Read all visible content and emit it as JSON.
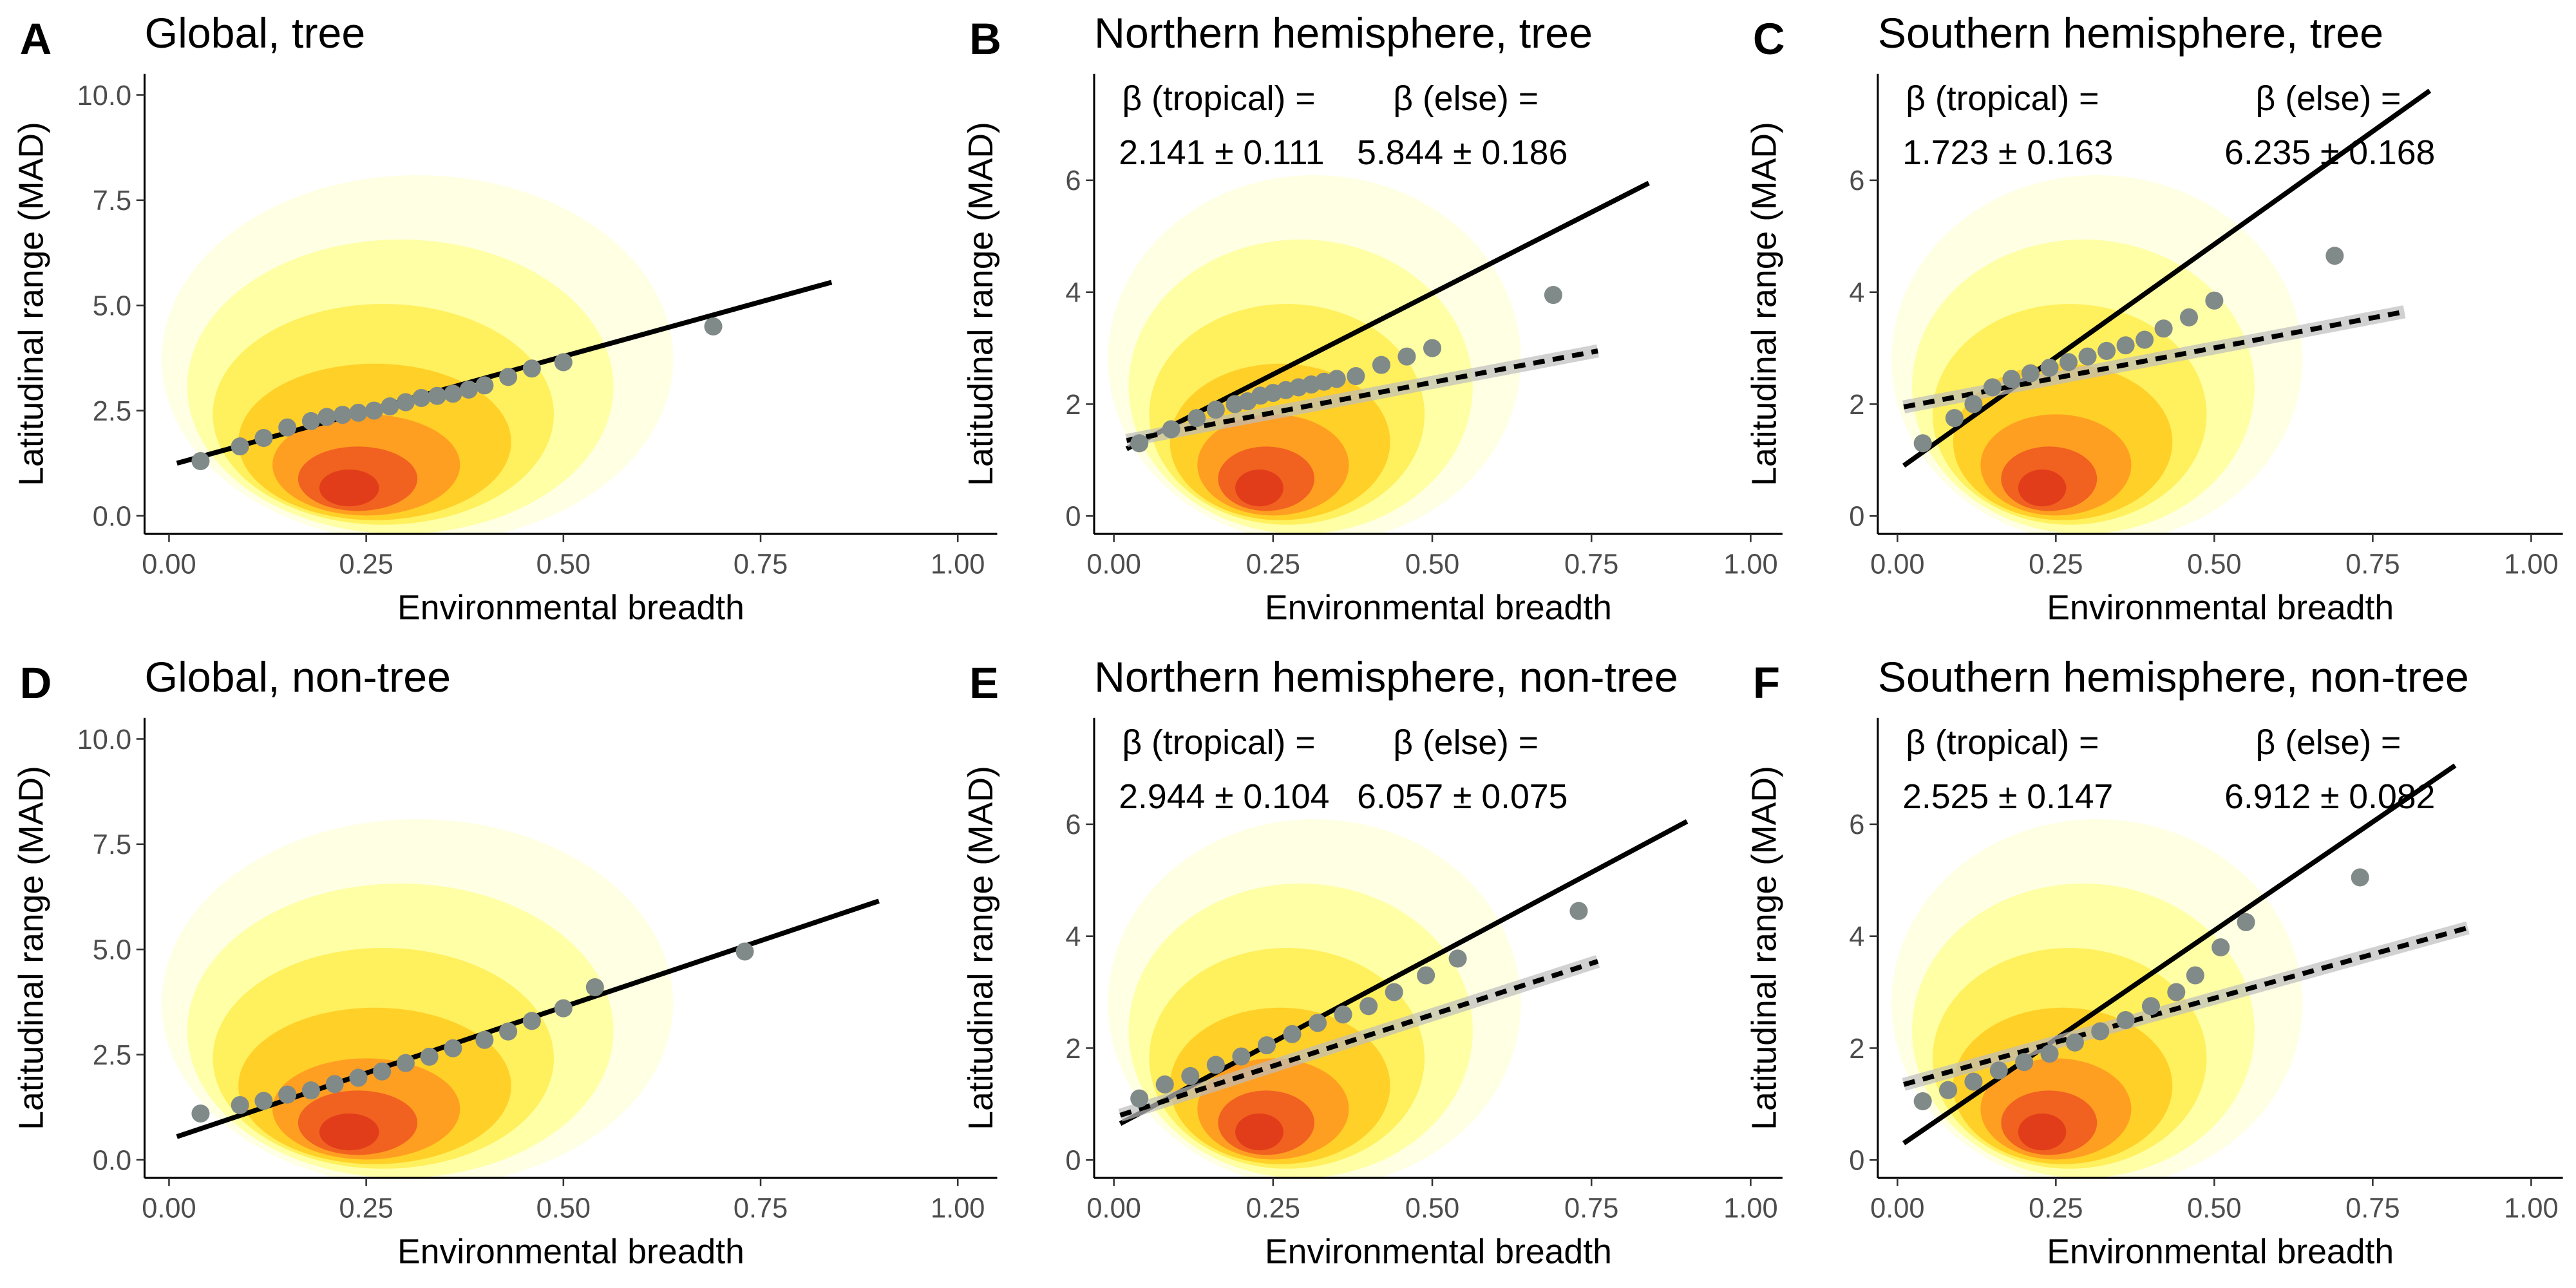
{
  "chart_data": [
    {
      "type": "scatter",
      "panel": "A",
      "title": "Global, tree",
      "x_label": "Environmental breadth",
      "y_label": "Latitudinal range (MAD)",
      "xlim": [
        -0.031,
        1.05
      ],
      "ylim": [
        -0.43,
        10.5
      ],
      "xticks": [
        {
          "value": 0,
          "label": "0.00"
        },
        0.25,
        {
          "value": 0.5,
          "label": "0.50"
        },
        0.75,
        {
          "value": 1,
          "label": "1.00"
        }
      ],
      "yticks": [
        {
          "value": 0,
          "label": "0.0"
        },
        2.5,
        {
          "value": 5,
          "label": "5.0"
        },
        7.5,
        {
          "value": 10,
          "label": "10.0"
        }
      ],
      "point_color": "#808a88",
      "line_color": "#000000",
      "x": [
        0.04,
        0.09,
        0.12,
        0.15,
        0.18,
        0.2,
        0.22,
        0.24,
        0.26,
        0.28,
        0.3,
        0.32,
        0.34,
        0.36,
        0.38,
        0.4,
        0.43,
        0.46,
        0.5,
        0.69
      ],
      "values": [
        1.3,
        1.65,
        1.85,
        2.1,
        2.25,
        2.35,
        2.4,
        2.45,
        2.5,
        2.6,
        2.7,
        2.8,
        2.85,
        2.9,
        3.0,
        3.1,
        3.3,
        3.5,
        3.65,
        4.5
      ],
      "lines": [
        {
          "style": "solid",
          "x": [
            0.01,
            0.84
          ],
          "values": [
            1.25,
            5.55
          ]
        }
      ]
    },
    {
      "type": "scatter",
      "panel": "B",
      "title": "Northern hemisphere, tree",
      "x_label": "Environmental breadth",
      "y_label": "Latitudinal range (MAD)",
      "xlim": [
        -0.031,
        1.05
      ],
      "ylim": [
        -0.32,
        7.9
      ],
      "xticks": [
        {
          "value": 0,
          "label": "0.00"
        },
        0.25,
        {
          "value": 0.5,
          "label": "0.50"
        },
        0.75,
        {
          "value": 1,
          "label": "1.00"
        }
      ],
      "yticks": [
        0,
        2,
        4,
        6
      ],
      "point_color": "#808a88",
      "line_color": "#000000",
      "annotations": [
        "β (tropical) =",
        "2.141 ± 0.111",
        "β (else) =",
        "5.844 ± 0.186"
      ],
      "x": [
        0.04,
        0.09,
        0.13,
        0.16,
        0.19,
        0.21,
        0.23,
        0.25,
        0.27,
        0.29,
        0.31,
        0.33,
        0.35,
        0.38,
        0.42,
        0.46,
        0.5,
        0.69
      ],
      "values": [
        1.3,
        1.55,
        1.75,
        1.9,
        2.0,
        2.05,
        2.15,
        2.2,
        2.25,
        2.3,
        2.35,
        2.4,
        2.45,
        2.5,
        2.7,
        2.85,
        3.0,
        3.95
      ],
      "lines": [
        {
          "style": "solid",
          "x": [
            0.02,
            0.84
          ],
          "values": [
            1.2,
            5.95
          ]
        },
        {
          "style": "dashed",
          "x": [
            0.02,
            0.76
          ],
          "values": [
            1.35,
            2.95
          ]
        }
      ]
    },
    {
      "type": "scatter",
      "panel": "C",
      "title": "Southern hemisphere, tree",
      "x_label": "Environmental breadth",
      "y_label": "Latitudinal range (MAD)",
      "xlim": [
        -0.031,
        1.05
      ],
      "ylim": [
        -0.32,
        7.9
      ],
      "xticks": [
        {
          "value": 0,
          "label": "0.00"
        },
        0.25,
        {
          "value": 0.5,
          "label": "0.50"
        },
        0.75,
        {
          "value": 1,
          "label": "1.00"
        }
      ],
      "yticks": [
        0,
        2,
        4,
        6
      ],
      "point_color": "#808a88",
      "line_color": "#000000",
      "annotations": [
        "β (tropical) =",
        "1.723 ± 0.163",
        "β (else) =",
        "6.235 ± 0.168"
      ],
      "x": [
        0.04,
        0.09,
        0.12,
        0.15,
        0.18,
        0.21,
        0.24,
        0.27,
        0.3,
        0.33,
        0.36,
        0.39,
        0.42,
        0.46,
        0.5,
        0.69
      ],
      "values": [
        1.3,
        1.75,
        2.0,
        2.3,
        2.45,
        2.55,
        2.65,
        2.75,
        2.85,
        2.95,
        3.05,
        3.15,
        3.35,
        3.55,
        3.85,
        4.65
      ],
      "lines": [
        {
          "style": "solid",
          "x": [
            0.01,
            0.84
          ],
          "values": [
            0.9,
            7.6
          ]
        },
        {
          "style": "dashed",
          "x": [
            0.01,
            0.8
          ],
          "values": [
            1.95,
            3.65
          ]
        }
      ]
    },
    {
      "type": "scatter",
      "panel": "D",
      "title": "Global, non-tree",
      "x_label": "Environmental breadth",
      "y_label": "Latitudinal range (MAD)",
      "xlim": [
        -0.031,
        1.05
      ],
      "ylim": [
        -0.43,
        10.5
      ],
      "xticks": [
        {
          "value": 0,
          "label": "0.00"
        },
        0.25,
        {
          "value": 0.5,
          "label": "0.50"
        },
        0.75,
        {
          "value": 1,
          "label": "1.00"
        }
      ],
      "yticks": [
        {
          "value": 0,
          "label": "0.0"
        },
        2.5,
        {
          "value": 5,
          "label": "5.0"
        },
        7.5,
        {
          "value": 10,
          "label": "10.0"
        }
      ],
      "point_color": "#808a88",
      "line_color": "#000000",
      "x": [
        0.04,
        0.09,
        0.12,
        0.15,
        0.18,
        0.21,
        0.24,
        0.27,
        0.3,
        0.33,
        0.36,
        0.4,
        0.43,
        0.46,
        0.5,
        0.54,
        0.73
      ],
      "values": [
        1.1,
        1.3,
        1.4,
        1.55,
        1.65,
        1.8,
        1.95,
        2.1,
        2.3,
        2.45,
        2.65,
        2.85,
        3.05,
        3.3,
        3.6,
        4.1,
        4.95
      ],
      "lines": [
        {
          "style": "solid",
          "x": [
            0.01,
            0.9
          ],
          "values": [
            0.55,
            6.15
          ]
        }
      ]
    },
    {
      "type": "scatter",
      "panel": "E",
      "title": "Northern hemisphere, non-tree",
      "x_label": "Environmental breadth",
      "y_label": "Latitudinal range (MAD)",
      "xlim": [
        -0.031,
        1.05
      ],
      "ylim": [
        -0.32,
        7.9
      ],
      "xticks": [
        {
          "value": 0,
          "label": "0.00"
        },
        0.25,
        {
          "value": 0.5,
          "label": "0.50"
        },
        0.75,
        {
          "value": 1,
          "label": "1.00"
        }
      ],
      "yticks": [
        0,
        2,
        4,
        6
      ],
      "point_color": "#808a88",
      "line_color": "#000000",
      "annotations": [
        "β (tropical) =",
        "2.944 ± 0.104",
        "β (else) =",
        "6.057 ± 0.075"
      ],
      "x": [
        0.04,
        0.08,
        0.12,
        0.16,
        0.2,
        0.24,
        0.28,
        0.32,
        0.36,
        0.4,
        0.44,
        0.49,
        0.54,
        0.73
      ],
      "values": [
        1.1,
        1.35,
        1.5,
        1.7,
        1.85,
        2.05,
        2.25,
        2.45,
        2.6,
        2.75,
        3.0,
        3.3,
        3.6,
        4.45
      ],
      "lines": [
        {
          "style": "solid",
          "x": [
            0.01,
            0.9
          ],
          "values": [
            0.65,
            6.05
          ]
        },
        {
          "style": "dashed",
          "x": [
            0.01,
            0.76
          ],
          "values": [
            0.8,
            3.55
          ]
        }
      ]
    },
    {
      "type": "scatter",
      "panel": "F",
      "title": "Southern hemisphere, non-tree",
      "x_label": "Environmental breadth",
      "y_label": "Latitudinal range (MAD)",
      "xlim": [
        -0.031,
        1.05
      ],
      "ylim": [
        -0.32,
        7.9
      ],
      "xticks": [
        {
          "value": 0,
          "label": "0.00"
        },
        0.25,
        {
          "value": 0.5,
          "label": "0.50"
        },
        0.75,
        {
          "value": 1,
          "label": "1.00"
        }
      ],
      "yticks": [
        0,
        2,
        4,
        6
      ],
      "point_color": "#808a88",
      "line_color": "#000000",
      "annotations": [
        "β (tropical) =",
        "2.525 ± 0.147",
        "β (else) =",
        "6.912 ± 0.082"
      ],
      "x": [
        0.04,
        0.08,
        0.12,
        0.16,
        0.2,
        0.24,
        0.28,
        0.32,
        0.36,
        0.4,
        0.44,
        0.47,
        0.51,
        0.55,
        0.73
      ],
      "values": [
        1.05,
        1.25,
        1.4,
        1.6,
        1.75,
        1.9,
        2.1,
        2.3,
        2.5,
        2.75,
        3.0,
        3.3,
        3.8,
        4.25,
        5.05
      ],
      "lines": [
        {
          "style": "solid",
          "x": [
            0.01,
            0.88
          ],
          "values": [
            0.3,
            7.05
          ]
        },
        {
          "style": "dashed",
          "x": [
            0.01,
            0.9
          ],
          "values": [
            1.35,
            4.15
          ]
        }
      ]
    }
  ]
}
